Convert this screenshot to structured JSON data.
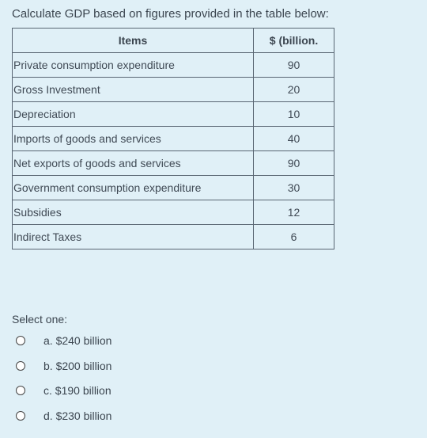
{
  "question": "Calculate GDP based on figures provided in the table below:",
  "table": {
    "headers": [
      "Items",
      "$ (billion."
    ],
    "rows": [
      {
        "item": "Private consumption expenditure",
        "value": "90"
      },
      {
        "item": "Gross Investment",
        "value": "20"
      },
      {
        "item": "Depreciation",
        "value": "10"
      },
      {
        "item": "Imports of goods and services",
        "value": "40"
      },
      {
        "item": "Net exports of goods and services",
        "value": "90"
      },
      {
        "item": "Government consumption expenditure",
        "value": "30"
      },
      {
        "item": "Subsidies",
        "value": "12"
      },
      {
        "item": "Indirect Taxes",
        "value": "6"
      }
    ]
  },
  "select_prompt": "Select one:",
  "options": [
    {
      "label": "a. $240 billion",
      "selected": false
    },
    {
      "label": "b. $200 billion",
      "selected": false
    },
    {
      "label": "c. $190 billion",
      "selected": false
    },
    {
      "label": "d. $230 billion",
      "selected": false
    }
  ],
  "colors": {
    "background": "#e0f0f7",
    "text": "#3c4650",
    "table_border": "#596673"
  }
}
